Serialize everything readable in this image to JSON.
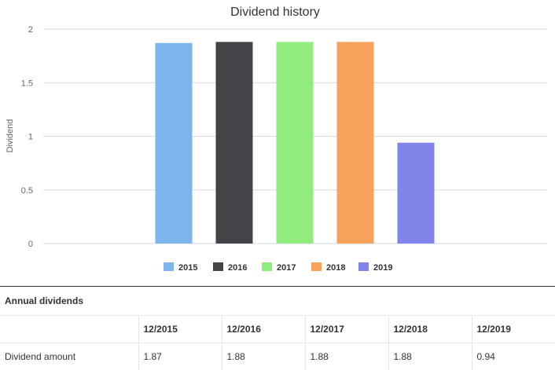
{
  "chart_data": {
    "type": "bar",
    "title": "Dividend history",
    "ylabel": "Dividend",
    "xlabel": "",
    "categories": [
      "2015",
      "2016",
      "2017",
      "2018",
      "2019"
    ],
    "values": [
      1.87,
      1.88,
      1.88,
      1.88,
      0.94
    ],
    "colors": [
      "#7cb5ec",
      "#434348",
      "#90ed7d",
      "#f7a35c",
      "#8085e9"
    ],
    "ylim": [
      0,
      2
    ],
    "yticks": [
      0,
      0.5,
      1,
      1.5,
      2
    ],
    "ytick_labels": [
      "0",
      "0.5",
      "1",
      "1.5",
      "2"
    ],
    "grid": true,
    "legend": "bottom-center"
  },
  "table": {
    "title": "Annual dividends",
    "header_label": "",
    "periods": [
      "12/2015",
      "12/2016",
      "12/2017",
      "12/2018",
      "12/2019"
    ],
    "row_label": "Dividend amount",
    "amounts": [
      "1.87",
      "1.88",
      "1.88",
      "1.88",
      "0.94"
    ]
  }
}
